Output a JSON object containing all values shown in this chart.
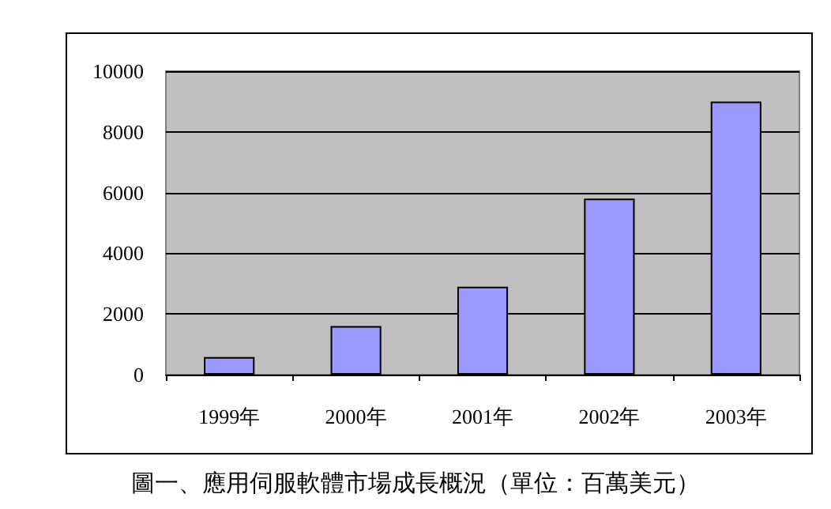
{
  "chart_data": {
    "type": "bar",
    "title": "圖一、應用伺服軟體市場成長概況（單位：百萬美元）",
    "categories": [
      "1999年",
      "2000年",
      "2001年",
      "2002年",
      "2003年"
    ],
    "values": [
      580,
      1600,
      2900,
      5800,
      9000
    ],
    "color": "#9999ff",
    "ylim": [
      0,
      10000
    ],
    "yticks": [
      0,
      2000,
      4000,
      6000,
      8000,
      10000
    ],
    "grid": "y"
  }
}
